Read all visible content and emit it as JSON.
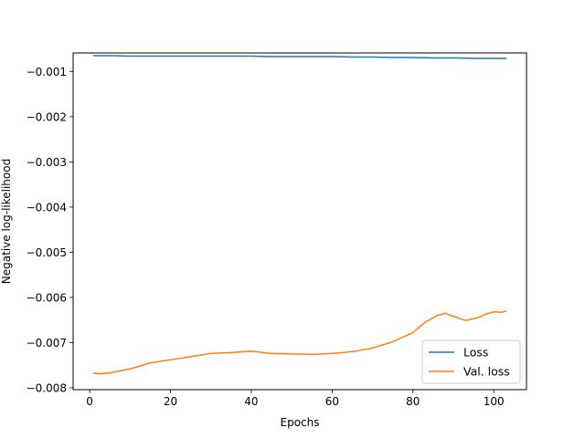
{
  "chart_data": {
    "type": "line",
    "xlabel": "Epochs",
    "ylabel": "Negative log-likelihood",
    "xlim": [
      -4.1,
      108.1
    ],
    "ylim": [
      -0.00804,
      -0.00059
    ],
    "xticks": [
      0,
      20,
      40,
      60,
      80,
      100
    ],
    "xtick_labels": [
      "0",
      "20",
      "40",
      "60",
      "80",
      "100"
    ],
    "yticks": [
      -0.001,
      -0.002,
      -0.003,
      -0.004,
      -0.005,
      -0.006,
      -0.007,
      -0.008
    ],
    "ytick_labels": [
      "−0.001",
      "−0.002",
      "−0.003",
      "−0.004",
      "−0.005",
      "−0.006",
      "−0.007",
      "−0.008"
    ],
    "grid": false,
    "legend_position": "bottom-right",
    "series": [
      {
        "name": "Loss",
        "color": "#1f77b4",
        "x": [
          1,
          5,
          10,
          15,
          20,
          25,
          30,
          35,
          40,
          45,
          50,
          55,
          60,
          65,
          70,
          75,
          80,
          85,
          90,
          95,
          100,
          103
        ],
        "y": [
          -0.00065,
          -0.00065,
          -0.00066,
          -0.00066,
          -0.00066,
          -0.00066,
          -0.00066,
          -0.00066,
          -0.00066,
          -0.00067,
          -0.00067,
          -0.00067,
          -0.00067,
          -0.00068,
          -0.00068,
          -0.00069,
          -0.00069,
          -0.0007,
          -0.0007,
          -0.00071,
          -0.00071,
          -0.00071
        ]
      },
      {
        "name": "Val. loss",
        "color": "#ff7f0e",
        "x": [
          1,
          3,
          5,
          10,
          15,
          20,
          25,
          30,
          35,
          40,
          45,
          50,
          55,
          60,
          65,
          70,
          75,
          80,
          83,
          86,
          88,
          90,
          93,
          96,
          98,
          100,
          102,
          103
        ],
        "y": [
          -0.00768,
          -0.00769,
          -0.00767,
          -0.00758,
          -0.00745,
          -0.00738,
          -0.00731,
          -0.00724,
          -0.00722,
          -0.00719,
          -0.00724,
          -0.00725,
          -0.00726,
          -0.00724,
          -0.0072,
          -0.00712,
          -0.00698,
          -0.00678,
          -0.00655,
          -0.0064,
          -0.00635,
          -0.00642,
          -0.00651,
          -0.00645,
          -0.00637,
          -0.00632,
          -0.00633,
          -0.0063
        ]
      }
    ]
  }
}
